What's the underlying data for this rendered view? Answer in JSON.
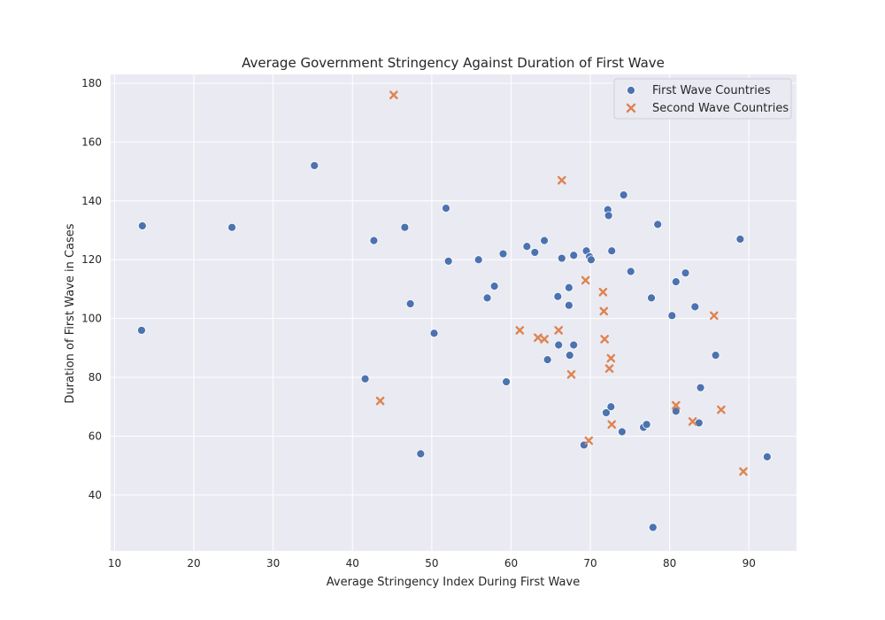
{
  "chart_data": {
    "type": "scatter",
    "title": "Average Government Stringency Against Duration of First Wave",
    "xlabel": "Average Stringency Index During First Wave",
    "ylabel": "Duration of First Wave in Cases",
    "xlim": [
      9.5,
      96
    ],
    "ylim": [
      21,
      183
    ],
    "xticks": [
      10,
      20,
      30,
      40,
      50,
      60,
      70,
      80,
      90
    ],
    "yticks": [
      40,
      60,
      80,
      100,
      120,
      140,
      160,
      180
    ],
    "grid": true,
    "legend_position": "top-right",
    "colors": {
      "background": "#eaeaf2",
      "grid": "#ffffff",
      "first": "#4c72b0",
      "second": "#dd8452"
    },
    "series": [
      {
        "name": "First Wave Countries",
        "marker": "circle",
        "points": [
          [
            13.5,
            131.5
          ],
          [
            13.4,
            96
          ],
          [
            24.8,
            131
          ],
          [
            35.2,
            152
          ],
          [
            41.6,
            79.5
          ],
          [
            42.7,
            126.5
          ],
          [
            46.6,
            131
          ],
          [
            47.3,
            105
          ],
          [
            48.6,
            54
          ],
          [
            50.3,
            95
          ],
          [
            51.8,
            137.5
          ],
          [
            52.1,
            119.5
          ],
          [
            55.9,
            120
          ],
          [
            57.0,
            107
          ],
          [
            57.9,
            111
          ],
          [
            59.0,
            122
          ],
          [
            59.4,
            78.5
          ],
          [
            62.0,
            124.5
          ],
          [
            63.0,
            122.5
          ],
          [
            64.2,
            126.5
          ],
          [
            64.6,
            86
          ],
          [
            65.9,
            107.5
          ],
          [
            66.0,
            91
          ],
          [
            66.4,
            120.5
          ],
          [
            67.3,
            110.5
          ],
          [
            67.3,
            104.5
          ],
          [
            67.4,
            87.5
          ],
          [
            67.9,
            121.5
          ],
          [
            67.9,
            91
          ],
          [
            69.2,
            57
          ],
          [
            69.5,
            123
          ],
          [
            69.9,
            121
          ],
          [
            70.1,
            120
          ],
          [
            72.0,
            68
          ],
          [
            72.2,
            137
          ],
          [
            72.3,
            135
          ],
          [
            72.6,
            70
          ],
          [
            72.7,
            123
          ],
          [
            74.0,
            61.5
          ],
          [
            74.2,
            142
          ],
          [
            75.1,
            116
          ],
          [
            76.7,
            63
          ],
          [
            77.1,
            64
          ],
          [
            77.7,
            107
          ],
          [
            77.9,
            29
          ],
          [
            78.5,
            132
          ],
          [
            80.3,
            101
          ],
          [
            80.8,
            112.5
          ],
          [
            80.8,
            68.5
          ],
          [
            82.0,
            115.5
          ],
          [
            83.2,
            104
          ],
          [
            83.7,
            64.5
          ],
          [
            83.9,
            76.5
          ],
          [
            85.8,
            87.5
          ],
          [
            88.9,
            127
          ],
          [
            92.3,
            53
          ]
        ]
      },
      {
        "name": "Second Wave Countries",
        "marker": "x",
        "points": [
          [
            43.5,
            72
          ],
          [
            45.2,
            176
          ],
          [
            61.1,
            96
          ],
          [
            63.4,
            93.5
          ],
          [
            64.2,
            93
          ],
          [
            66.0,
            96
          ],
          [
            66.4,
            147
          ],
          [
            67.6,
            81
          ],
          [
            69.4,
            113
          ],
          [
            69.8,
            58.5
          ],
          [
            71.6,
            109
          ],
          [
            71.7,
            102.5
          ],
          [
            71.8,
            93
          ],
          [
            72.4,
            83
          ],
          [
            72.6,
            86.5
          ],
          [
            72.7,
            64
          ],
          [
            80.8,
            70.5
          ],
          [
            82.9,
            65
          ],
          [
            85.6,
            101
          ],
          [
            86.5,
            69
          ],
          [
            89.3,
            48
          ]
        ]
      }
    ]
  }
}
